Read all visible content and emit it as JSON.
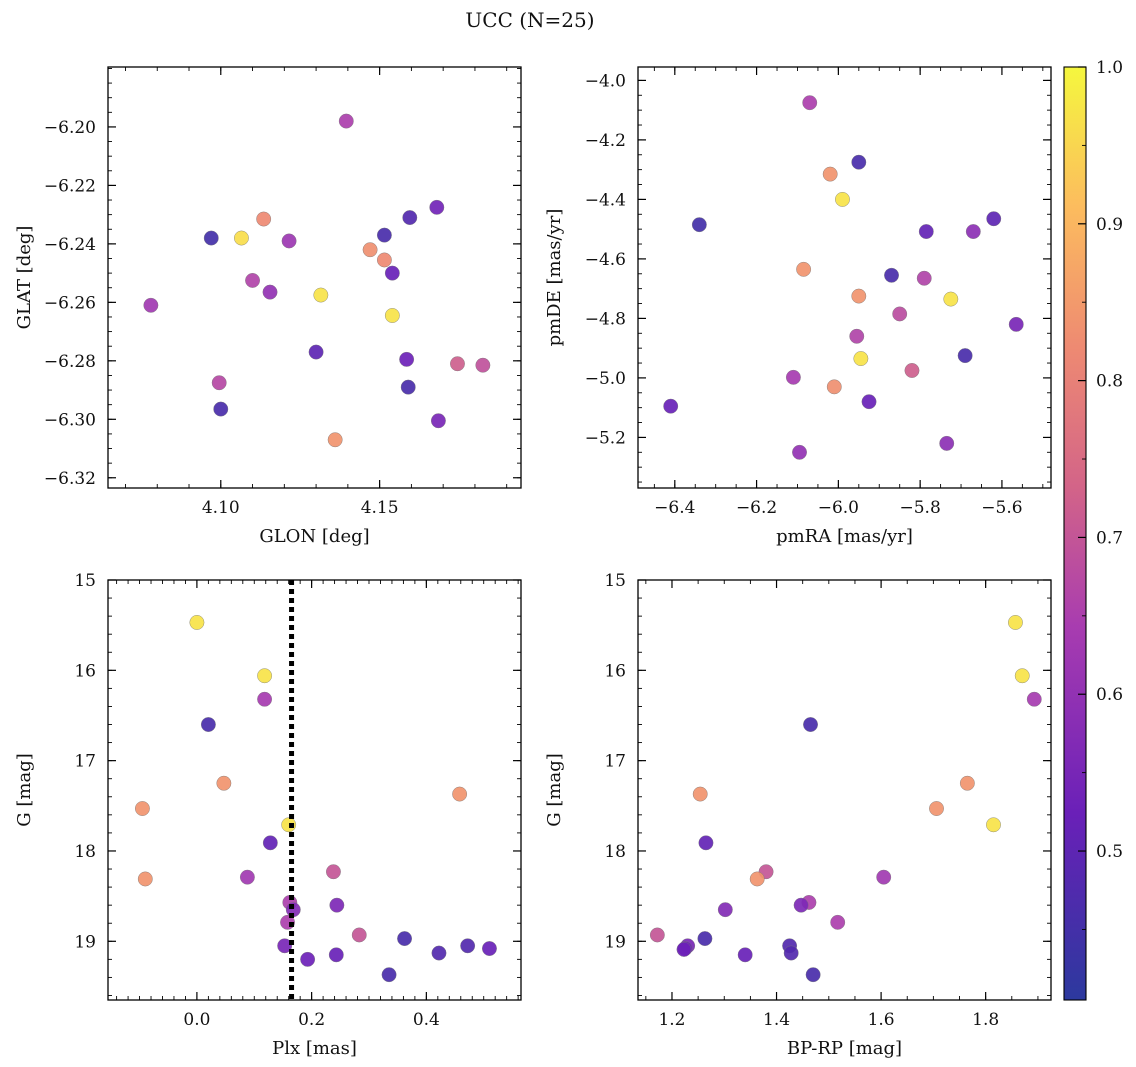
{
  "chart_data": {
    "type": "scatter",
    "title": "UCC (N=25)",
    "colorbar": {
      "ticks": [
        "0.5",
        "0.6",
        "0.7",
        "0.8",
        "0.9",
        "1.0"
      ],
      "colormap": "plasma",
      "range": [
        0.405,
        1.0
      ]
    },
    "panels": [
      {
        "name": "glon-glat",
        "xlabel": "GLON [deg]",
        "ylabel": "GLAT [deg]",
        "xlim": [
          4.0645,
          4.1945
        ],
        "ylim": [
          -6.3235,
          -6.1795
        ],
        "y_inverted": false,
        "xticks": [
          {
            "v": 4.1,
            "l": "4.10"
          },
          {
            "v": 4.15,
            "l": "4.15"
          }
        ],
        "yticks": [
          {
            "v": -6.2,
            "l": "−6.20"
          },
          {
            "v": -6.22,
            "l": "−6.22"
          },
          {
            "v": -6.24,
            "l": "−6.24"
          },
          {
            "v": -6.26,
            "l": "−6.26"
          },
          {
            "v": -6.28,
            "l": "−6.28"
          },
          {
            "v": -6.3,
            "l": "−6.30"
          },
          {
            "v": -6.32,
            "l": "−6.32"
          }
        ],
        "xminor": 0.01,
        "yminor": 0.005,
        "points": [
          {
            "x": 4.1395,
            "y": -6.198,
            "c": 0.65
          },
          {
            "x": 4.1135,
            "y": -6.2315,
            "c": 0.82
          },
          {
            "x": 4.097,
            "y": -6.238,
            "c": 0.45
          },
          {
            "x": 4.1065,
            "y": -6.238,
            "c": 0.96
          },
          {
            "x": 4.1215,
            "y": -6.239,
            "c": 0.62
          },
          {
            "x": 4.168,
            "y": -6.2275,
            "c": 0.54
          },
          {
            "x": 4.1595,
            "y": -6.231,
            "c": 0.48
          },
          {
            "x": 4.1515,
            "y": -6.237,
            "c": 0.46
          },
          {
            "x": 4.147,
            "y": -6.242,
            "c": 0.83
          },
          {
            "x": 4.1515,
            "y": -6.2455,
            "c": 0.82
          },
          {
            "x": 4.154,
            "y": -6.25,
            "c": 0.52
          },
          {
            "x": 4.11,
            "y": -6.2525,
            "c": 0.66
          },
          {
            "x": 4.1155,
            "y": -6.2565,
            "c": 0.6
          },
          {
            "x": 4.1315,
            "y": -6.2575,
            "c": 0.97
          },
          {
            "x": 4.078,
            "y": -6.261,
            "c": 0.63
          },
          {
            "x": 4.154,
            "y": -6.2645,
            "c": 0.97
          },
          {
            "x": 4.13,
            "y": -6.277,
            "c": 0.5
          },
          {
            "x": 4.1585,
            "y": -6.2795,
            "c": 0.53
          },
          {
            "x": 4.1745,
            "y": -6.281,
            "c": 0.72
          },
          {
            "x": 4.1825,
            "y": -6.2815,
            "c": 0.69
          },
          {
            "x": 4.0995,
            "y": -6.2875,
            "c": 0.67
          },
          {
            "x": 4.159,
            "y": -6.289,
            "c": 0.46
          },
          {
            "x": 4.1,
            "y": -6.2965,
            "c": 0.46
          },
          {
            "x": 4.1685,
            "y": -6.3005,
            "c": 0.55
          },
          {
            "x": 4.136,
            "y": -6.307,
            "c": 0.84
          }
        ]
      },
      {
        "name": "pmra-pmde",
        "xlabel": "pmRA [mas/yr]",
        "ylabel": "pmDE [mas/yr]",
        "xlim": [
          -6.49,
          -5.48
        ],
        "ylim": [
          -5.37,
          -3.955
        ],
        "y_inverted": false,
        "xticks": [
          {
            "v": -6.4,
            "l": "−6.4"
          },
          {
            "v": -6.2,
            "l": "−6.2"
          },
          {
            "v": -6.0,
            "l": "−6.0"
          },
          {
            "v": -5.8,
            "l": "−5.8"
          },
          {
            "v": -5.6,
            "l": "−5.6"
          }
        ],
        "yticks": [
          {
            "v": -4.0,
            "l": "−4.0"
          },
          {
            "v": -4.2,
            "l": "−4.2"
          },
          {
            "v": -4.4,
            "l": "−4.4"
          },
          {
            "v": -4.6,
            "l": "−4.6"
          },
          {
            "v": -4.8,
            "l": "−4.8"
          },
          {
            "v": -5.0,
            "l": "−5.0"
          },
          {
            "v": -5.2,
            "l": "−5.2"
          }
        ],
        "xminor": 0.05,
        "yminor": 0.05,
        "points": [
          {
            "x": -6.07,
            "y": -4.075,
            "c": 0.65
          },
          {
            "x": -5.95,
            "y": -4.275,
            "c": 0.46
          },
          {
            "x": -6.02,
            "y": -4.315,
            "c": 0.84
          },
          {
            "x": -5.99,
            "y": -4.4,
            "c": 0.97
          },
          {
            "x": -6.34,
            "y": -4.485,
            "c": 0.45
          },
          {
            "x": -5.62,
            "y": -4.465,
            "c": 0.5
          },
          {
            "x": -5.785,
            "y": -4.508,
            "c": 0.51
          },
          {
            "x": -5.67,
            "y": -4.508,
            "c": 0.59
          },
          {
            "x": -6.085,
            "y": -4.635,
            "c": 0.84
          },
          {
            "x": -5.87,
            "y": -4.655,
            "c": 0.46
          },
          {
            "x": -5.79,
            "y": -4.665,
            "c": 0.66
          },
          {
            "x": -5.95,
            "y": -4.725,
            "c": 0.84
          },
          {
            "x": -5.725,
            "y": -4.735,
            "c": 0.97
          },
          {
            "x": -5.85,
            "y": -4.785,
            "c": 0.68
          },
          {
            "x": -5.565,
            "y": -4.82,
            "c": 0.55
          },
          {
            "x": -5.955,
            "y": -4.86,
            "c": 0.66
          },
          {
            "x": -5.945,
            "y": -4.935,
            "c": 0.97
          },
          {
            "x": -5.69,
            "y": -4.925,
            "c": 0.46
          },
          {
            "x": -5.82,
            "y": -4.975,
            "c": 0.72
          },
          {
            "x": -6.11,
            "y": -4.998,
            "c": 0.64
          },
          {
            "x": -6.01,
            "y": -5.03,
            "c": 0.83
          },
          {
            "x": -5.925,
            "y": -5.08,
            "c": 0.52
          },
          {
            "x": -6.41,
            "y": -5.095,
            "c": 0.52
          },
          {
            "x": -5.735,
            "y": -5.22,
            "c": 0.59
          },
          {
            "x": -6.095,
            "y": -5.25,
            "c": 0.6
          }
        ]
      },
      {
        "name": "plx-g",
        "xlabel": "Plx [mas]",
        "ylabel": "G [mag]",
        "xlim": [
          -0.155,
          0.565
        ],
        "ylim": [
          15.0,
          19.65
        ],
        "y_inverted": true,
        "vline": 0.165,
        "xticks": [
          {
            "v": 0.0,
            "l": "0.0"
          },
          {
            "v": 0.2,
            "l": "0.2"
          },
          {
            "v": 0.4,
            "l": "0.4"
          }
        ],
        "yticks": [
          {
            "v": 15,
            "l": "15"
          },
          {
            "v": 16,
            "l": "16"
          },
          {
            "v": 17,
            "l": "17"
          },
          {
            "v": 18,
            "l": "18"
          },
          {
            "v": 19,
            "l": "19"
          }
        ],
        "xminor": 0.02,
        "yminor": 0.2,
        "points": [
          {
            "x": 0.0,
            "y": 15.47,
            "c": 0.97
          },
          {
            "x": 0.118,
            "y": 16.06,
            "c": 0.97
          },
          {
            "x": 0.118,
            "y": 16.32,
            "c": 0.64
          },
          {
            "x": 0.02,
            "y": 16.6,
            "c": 0.46
          },
          {
            "x": 0.047,
            "y": 17.25,
            "c": 0.84
          },
          {
            "x": 0.458,
            "y": 17.37,
            "c": 0.84
          },
          {
            "x": -0.095,
            "y": 17.53,
            "c": 0.84
          },
          {
            "x": 0.16,
            "y": 17.71,
            "c": 0.97
          },
          {
            "x": 0.128,
            "y": 17.91,
            "c": 0.51
          },
          {
            "x": -0.09,
            "y": 18.31,
            "c": 0.84
          },
          {
            "x": 0.088,
            "y": 18.29,
            "c": 0.63
          },
          {
            "x": 0.238,
            "y": 18.23,
            "c": 0.7
          },
          {
            "x": 0.162,
            "y": 18.57,
            "c": 0.65
          },
          {
            "x": 0.168,
            "y": 18.65,
            "c": 0.57
          },
          {
            "x": 0.244,
            "y": 18.6,
            "c": 0.56
          },
          {
            "x": 0.158,
            "y": 18.79,
            "c": 0.65
          },
          {
            "x": 0.283,
            "y": 18.93,
            "c": 0.7
          },
          {
            "x": 0.362,
            "y": 18.97,
            "c": 0.46
          },
          {
            "x": 0.153,
            "y": 19.05,
            "c": 0.55
          },
          {
            "x": 0.472,
            "y": 19.05,
            "c": 0.48
          },
          {
            "x": 0.51,
            "y": 19.08,
            "c": 0.52
          },
          {
            "x": 0.422,
            "y": 19.13,
            "c": 0.48
          },
          {
            "x": 0.243,
            "y": 19.15,
            "c": 0.52
          },
          {
            "x": 0.193,
            "y": 19.2,
            "c": 0.53
          },
          {
            "x": 0.335,
            "y": 19.37,
            "c": 0.46
          }
        ]
      },
      {
        "name": "bprp-g",
        "xlabel": "BP-RP [mag]",
        "ylabel": "G [mag]",
        "xlim": [
          1.135,
          1.925
        ],
        "ylim": [
          15.0,
          19.65
        ],
        "y_inverted": true,
        "xticks": [
          {
            "v": 1.2,
            "l": "1.2"
          },
          {
            "v": 1.4,
            "l": "1.4"
          },
          {
            "v": 1.6,
            "l": "1.6"
          },
          {
            "v": 1.8,
            "l": "1.8"
          }
        ],
        "yticks": [
          {
            "v": 15,
            "l": "15"
          },
          {
            "v": 16,
            "l": "16"
          },
          {
            "v": 17,
            "l": "17"
          },
          {
            "v": 18,
            "l": "18"
          },
          {
            "v": 19,
            "l": "19"
          }
        ],
        "xminor": 0.05,
        "yminor": 0.2,
        "points": [
          {
            "x": 1.857,
            "y": 15.47,
            "c": 0.97
          },
          {
            "x": 1.87,
            "y": 16.06,
            "c": 0.97
          },
          {
            "x": 1.893,
            "y": 16.32,
            "c": 0.64
          },
          {
            "x": 1.465,
            "y": 16.6,
            "c": 0.46
          },
          {
            "x": 1.765,
            "y": 17.25,
            "c": 0.84
          },
          {
            "x": 1.254,
            "y": 17.37,
            "c": 0.84
          },
          {
            "x": 1.706,
            "y": 17.53,
            "c": 0.84
          },
          {
            "x": 1.815,
            "y": 17.71,
            "c": 0.97
          },
          {
            "x": 1.265,
            "y": 17.91,
            "c": 0.51
          },
          {
            "x": 1.38,
            "y": 18.23,
            "c": 0.7
          },
          {
            "x": 1.363,
            "y": 18.31,
            "c": 0.84
          },
          {
            "x": 1.605,
            "y": 18.29,
            "c": 0.63
          },
          {
            "x": 1.462,
            "y": 18.57,
            "c": 0.65
          },
          {
            "x": 1.447,
            "y": 18.6,
            "c": 0.56
          },
          {
            "x": 1.302,
            "y": 18.65,
            "c": 0.57
          },
          {
            "x": 1.517,
            "y": 18.79,
            "c": 0.65
          },
          {
            "x": 1.172,
            "y": 18.93,
            "c": 0.7
          },
          {
            "x": 1.263,
            "y": 18.97,
            "c": 0.46
          },
          {
            "x": 1.425,
            "y": 19.05,
            "c": 0.48
          },
          {
            "x": 1.23,
            "y": 19.05,
            "c": 0.55
          },
          {
            "x": 1.225,
            "y": 19.08,
            "c": 0.52
          },
          {
            "x": 1.428,
            "y": 19.13,
            "c": 0.48
          },
          {
            "x": 1.34,
            "y": 19.15,
            "c": 0.52
          },
          {
            "x": 1.223,
            "y": 19.09,
            "c": 0.53
          },
          {
            "x": 1.47,
            "y": 19.37,
            "c": 0.46
          }
        ]
      }
    ]
  }
}
